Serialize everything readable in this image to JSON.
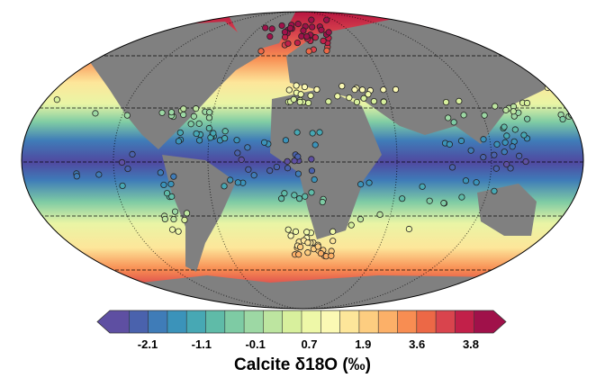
{
  "map": {
    "projection": "Robinson",
    "gray_land": "#808080"
  },
  "colorbar": {
    "label": "Calcite δ18O (‰)",
    "ticks": [
      -2.1,
      -1.1,
      -0.1,
      0.7,
      1.9,
      3.6,
      3.8
    ],
    "colors": [
      "#5e4fa2",
      "#4a62ad",
      "#3f7cb8",
      "#3b93ba",
      "#47a8b4",
      "#5fbba8",
      "#7ecba4",
      "#9dd8a4",
      "#bde5a0",
      "#d8f09d",
      "#eef8a8",
      "#fbf9b4",
      "#fde69a",
      "#fdcd80",
      "#fcb068",
      "#f88d52",
      "#ec6846",
      "#d9444d",
      "#c22049",
      "#a0114a"
    ]
  }
}
